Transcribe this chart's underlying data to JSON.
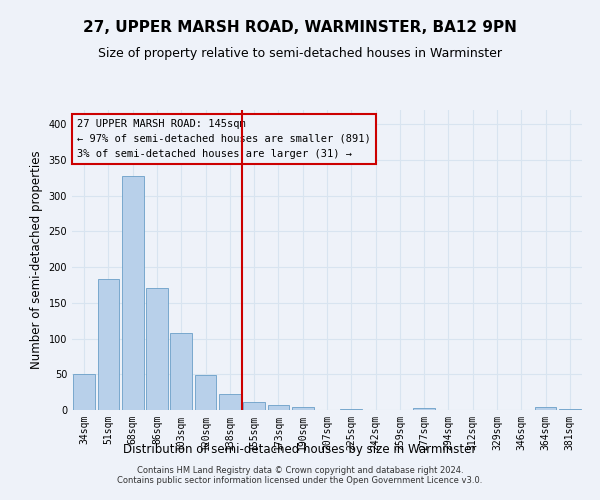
{
  "title": "27, UPPER MARSH ROAD, WARMINSTER, BA12 9PN",
  "subtitle": "Size of property relative to semi-detached houses in Warminster",
  "xlabel": "Distribution of semi-detached houses by size in Warminster",
  "ylabel": "Number of semi-detached properties",
  "footer_line1": "Contains HM Land Registry data © Crown copyright and database right 2024.",
  "footer_line2": "Contains public sector information licensed under the Open Government Licence v3.0.",
  "annotation_line1": "27 UPPER MARSH ROAD: 145sqm",
  "annotation_line2": "← 97% of semi-detached houses are smaller (891)",
  "annotation_line3": "3% of semi-detached houses are larger (31) →",
  "categories": [
    "34sqm",
    "51sqm",
    "68sqm",
    "86sqm",
    "103sqm",
    "120sqm",
    "138sqm",
    "155sqm",
    "173sqm",
    "190sqm",
    "207sqm",
    "225sqm",
    "242sqm",
    "259sqm",
    "277sqm",
    "294sqm",
    "312sqm",
    "329sqm",
    "346sqm",
    "364sqm",
    "381sqm"
  ],
  "values": [
    50,
    183,
    327,
    171,
    108,
    49,
    23,
    11,
    7,
    4,
    0,
    1,
    0,
    0,
    3,
    0,
    0,
    0,
    0,
    4,
    2
  ],
  "bar_color": "#b8d0ea",
  "bar_edge_color": "#6a9fc8",
  "vline_color": "#cc0000",
  "box_color": "#cc0000",
  "ylim": [
    0,
    420
  ],
  "background_color": "#eef2f9",
  "grid_color": "#d8e4f0",
  "title_fontsize": 11,
  "subtitle_fontsize": 9,
  "axis_label_fontsize": 8.5,
  "tick_fontsize": 7,
  "annotation_fontsize": 7.5,
  "footer_fontsize": 6
}
